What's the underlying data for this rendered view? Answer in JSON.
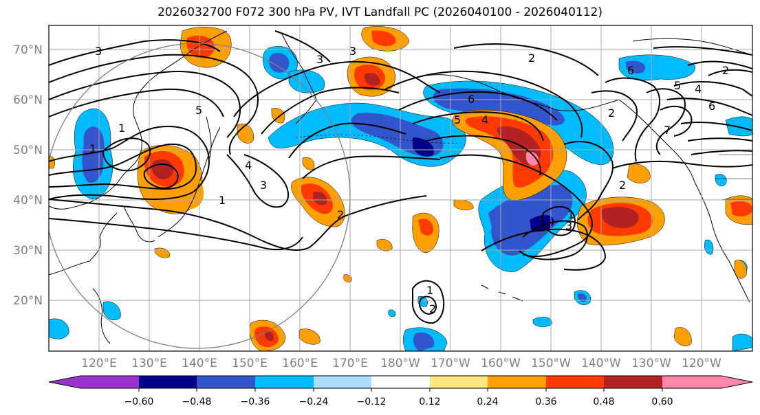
{
  "title": "2026032700 F072 300 hPa PV, IVT Landfall PC (2026040100 - 2026040112)",
  "lat_labels": [
    "70°N",
    "60°N",
    "50°N",
    "40°N",
    "30°N",
    "20°N"
  ],
  "lon_labels": [
    "120°E",
    "130°E",
    "140°E",
    "150°E",
    "160°E",
    "170°E",
    "180°W",
    "170°W",
    "160°W",
    "150°W",
    "140°W",
    "130°W",
    "120°W"
  ],
  "colorbar": {
    "ticks": [
      "−0.60",
      "−0.48",
      "−0.36",
      "−0.24",
      "−0.12",
      "0.12",
      "0.24",
      "0.36",
      "0.48",
      "0.60"
    ],
    "colors": [
      "#9933cc",
      "#000088",
      "#3355cc",
      "#00bbff",
      "#aaddff",
      "#ffffff",
      "#ffe680",
      "#ffa000",
      "#ff3a00",
      "#b22222",
      "#ff88aa"
    ]
  },
  "contour_labels": [
    "3",
    "3",
    "2",
    "2",
    "1",
    "6",
    "5",
    "4",
    "3",
    "1",
    "2",
    "4",
    "5",
    "3",
    "2",
    "1",
    "1",
    "2",
    "3",
    "6",
    "4",
    "7",
    "5",
    "6",
    "1",
    "2"
  ],
  "colors": {
    "grid": "#aaaaaa",
    "coast": "#000000",
    "axis_text": "#808080"
  }
}
